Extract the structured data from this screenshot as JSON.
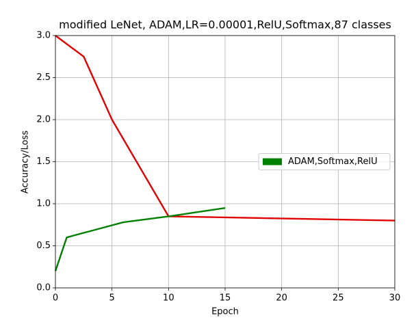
{
  "chart_data": {
    "type": "line",
    "title": "modified LeNet, ADAM,LR=0.00001,RelU,Softmax,87 classes",
    "x_label": "Epoch",
    "y_label": "Accuracy/Loss",
    "series": [
      {
        "color": "#e00000",
        "x": [
          0,
          2.5,
          5,
          10,
          30
        ],
        "values": [
          3.0,
          2.75,
          2.0,
          0.85,
          0.8
        ]
      },
      {
        "name": "ADAM,Softmax,RelU",
        "color": "#008000",
        "x": [
          0,
          1,
          6,
          10,
          15
        ],
        "values": [
          0.2,
          0.6,
          0.78,
          0.85,
          0.95
        ]
      }
    ],
    "xlim": [
      0,
      30
    ],
    "xticks": [
      0,
      5,
      10,
      15,
      20,
      25,
      30
    ],
    "ylim": [
      0,
      3.0
    ],
    "yticks": [
      {
        "value": 0,
        "label": "0.0"
      },
      0.5,
      {
        "value": 1,
        "label": "1.0"
      },
      1.5,
      {
        "value": 2,
        "label": "2.0"
      },
      2.5,
      {
        "value": 3,
        "label": "3.0"
      }
    ],
    "grid": true,
    "legend": "center right"
  }
}
